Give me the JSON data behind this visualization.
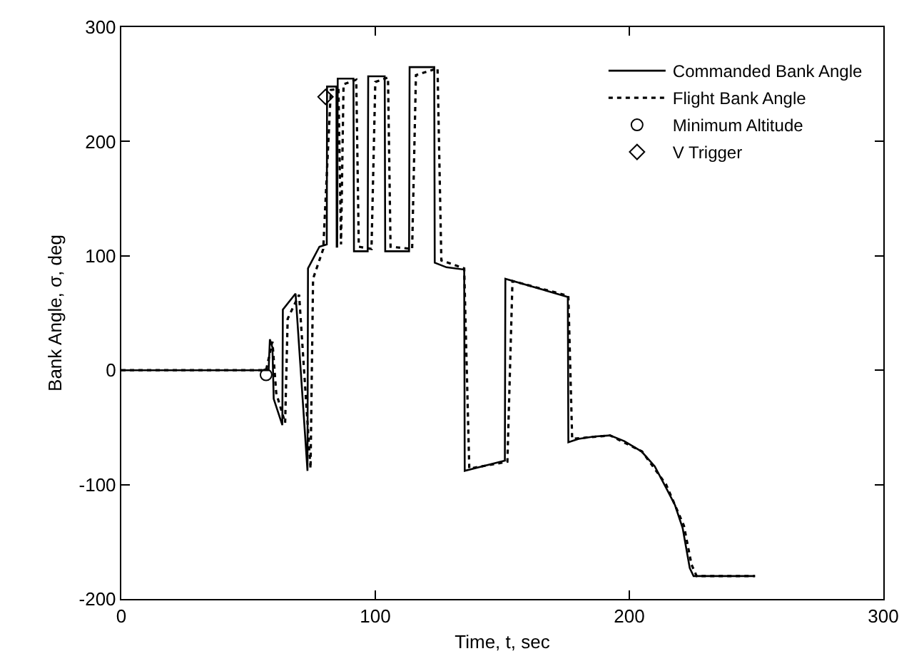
{
  "chart_data": {
    "type": "line",
    "xlabel": "Time, t, sec",
    "ylabel": "Bank Angle, σ, deg",
    "xlim": [
      0,
      300
    ],
    "xticks": [
      0,
      100,
      200,
      300
    ],
    "ylim": [
      -200,
      300
    ],
    "yticks": [
      -200,
      -100,
      0,
      100,
      200,
      300
    ],
    "legend": "top right",
    "series": [
      {
        "name": "Commanded Bank Angle",
        "color": "#000000",
        "line_style": "solid",
        "marker": "none",
        "x": [
          0,
          56,
          58,
          58.5,
          59.5,
          60,
          63.4,
          63.6,
          68.6,
          73.3,
          73.5,
          78,
          80.9,
          81,
          84.7,
          84.8,
          85,
          85.2,
          91.4,
          91.6,
          97,
          97.2,
          103.7,
          103.9,
          113.3,
          113.5,
          123.2,
          123.4,
          128,
          135,
          135.2,
          151,
          151.2,
          175.8,
          176,
          180,
          186,
          192.4,
          198,
          204.8,
          210,
          214.3,
          218,
          221,
          223.8,
          225.3,
          249.5
        ],
        "values": [
          0,
          0,
          0,
          27,
          20,
          -25,
          -48,
          53,
          67,
          -88,
          89,
          108,
          110,
          248,
          248,
          108,
          108,
          255,
          255,
          104,
          104,
          257,
          257,
          104,
          104,
          265,
          265,
          94,
          90,
          88,
          -88,
          -79,
          80,
          64,
          -63,
          -60,
          -58,
          -57,
          -62,
          -71,
          -84,
          -102,
          -118,
          -138,
          -173,
          -180,
          -180
        ]
      },
      {
        "name": "Flight Bank Angle",
        "color": "#000000",
        "line_style": "dotted",
        "marker": "none",
        "x": [
          0,
          57,
          59.5,
          61,
          64.5,
          65.5,
          70,
          74.5,
          75.5,
          79.5,
          82.5,
          85.5,
          86.5,
          87.5,
          92.5,
          93.5,
          98.5,
          100,
          105,
          106,
          114.5,
          116,
          124.5,
          126,
          135,
          137,
          152,
          154,
          176,
          177.5,
          192.4,
          205,
          214.5,
          221.5,
          224.5,
          226.5,
          249.5
        ],
        "values": [
          0,
          0,
          25,
          -20,
          -46,
          45,
          66,
          -86,
          80,
          106,
          245,
          246,
          110,
          250,
          254,
          108,
          106,
          252,
          256,
          108,
          106,
          258,
          264,
          96,
          89,
          -86,
          -80,
          78,
          65,
          -60,
          -57,
          -71,
          -100,
          -136,
          -170,
          -180,
          -180
        ]
      },
      {
        "name": "Minimum Altitude",
        "type": "scatter",
        "color": "#000000",
        "marker": "circle",
        "x": [
          57
        ],
        "values": [
          -4
        ]
      },
      {
        "name": "V Trigger",
        "type": "scatter",
        "color": "#000000",
        "marker": "diamond",
        "x": [
          80.4
        ],
        "values": [
          239
        ]
      }
    ]
  }
}
